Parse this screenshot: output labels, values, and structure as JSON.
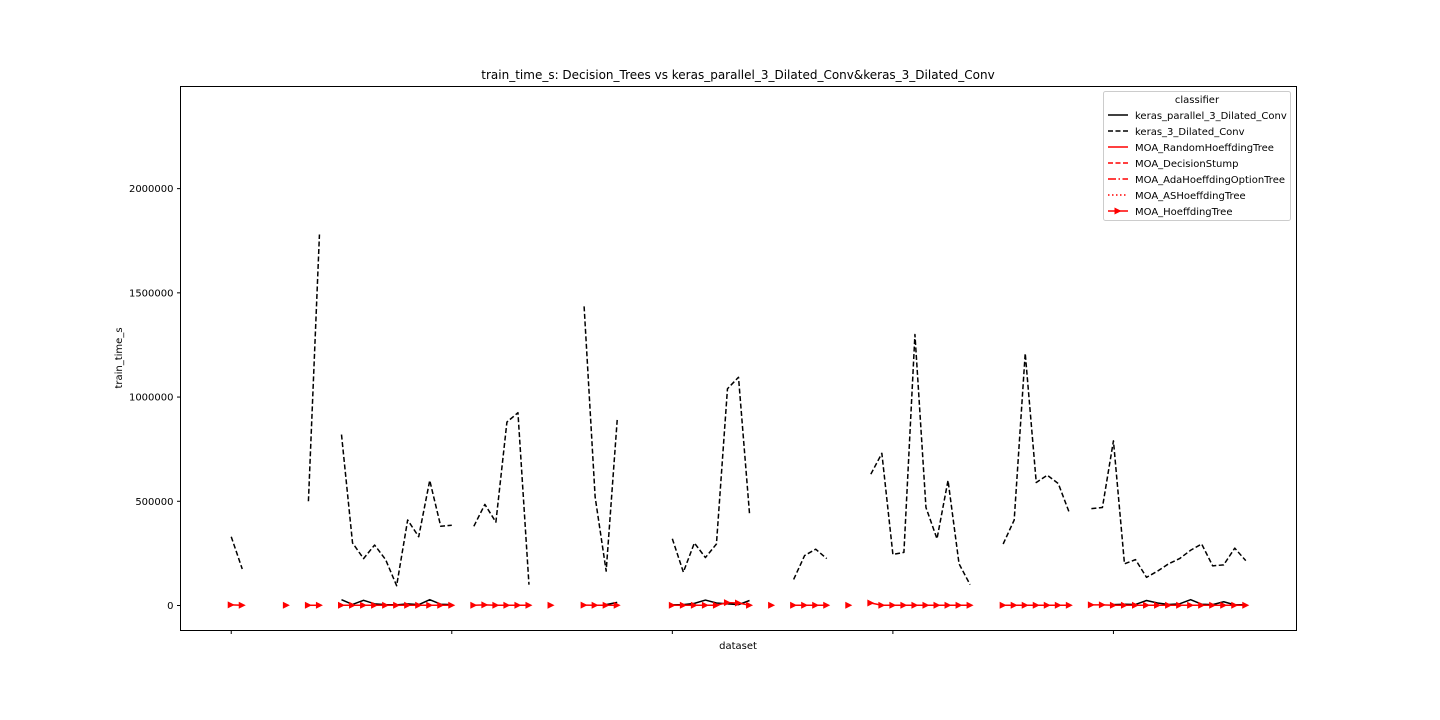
{
  "chart_data": {
    "type": "line",
    "title": "train_time_s: Decision_Trees vs keras_parallel_3_Dilated_Conv&keras_3_Dilated_Conv",
    "xlabel": "dataset",
    "ylabel": "train_time_s",
    "n_datasets": 94,
    "xlim": [
      -4.6,
      96.6
    ],
    "ylim": [
      -120000,
      2490000
    ],
    "yticks": [
      0,
      500000,
      1000000,
      1500000,
      2000000
    ],
    "ytick_labels": [
      "0",
      "500000",
      "1000000",
      "1500000",
      "2000000"
    ],
    "xticks": [
      0,
      20,
      40,
      60,
      80
    ],
    "grid": false,
    "legend": {
      "title": "classifier",
      "placement": "upper right",
      "entries": [
        {
          "label": "keras_parallel_3_Dilated_Conv",
          "color": "#000000",
          "style": "solid"
        },
        {
          "label": "keras_3_Dilated_Conv",
          "color": "#000000",
          "style": "dashed"
        },
        {
          "label": "MOA_RandomHoeffdingTree",
          "color": "#ff0000",
          "style": "solid"
        },
        {
          "label": "MOA_DecisionStump",
          "color": "#ff0000",
          "style": "dashed"
        },
        {
          "label": "MOA_AdaHoeffdingOptionTree",
          "color": "#ff0000",
          "style": "dashdot"
        },
        {
          "label": "MOA_ASHoeffdingTree",
          "color": "#ff0000",
          "style": "dotted"
        },
        {
          "label": "MOA_HoeffdingTree",
          "color": "#ff0000",
          "style": "solid-marker"
        }
      ]
    },
    "series": [
      {
        "name": "keras_3_Dilated_Conv",
        "segments": [
          [
            [
              0,
              330000
            ],
            [
              1,
              175000
            ]
          ],
          [
            [
              7,
              500000
            ],
            [
              8,
              1780000
            ]
          ],
          [
            [
              10,
              820000
            ],
            [
              11,
              300000
            ],
            [
              12,
              225000
            ],
            [
              13,
              290000
            ],
            [
              14,
              220000
            ],
            [
              15,
              95000
            ],
            [
              16,
              410000
            ],
            [
              17,
              330000
            ],
            [
              18,
              600000
            ],
            [
              19,
              380000
            ],
            [
              20,
              385000
            ]
          ],
          [
            [
              22,
              380000
            ],
            [
              23,
              485000
            ],
            [
              24,
              400000
            ],
            [
              25,
              880000
            ],
            [
              26,
              925000
            ],
            [
              27,
              100000
            ]
          ],
          [
            [
              32,
              1435000
            ],
            [
              33,
              520000
            ],
            [
              34,
              165000
            ],
            [
              35,
              890000
            ]
          ],
          [
            [
              40,
              320000
            ],
            [
              41,
              160000
            ],
            [
              42,
              300000
            ],
            [
              43,
              230000
            ],
            [
              44,
              295000
            ],
            [
              45,
              1040000
            ],
            [
              46,
              1095000
            ],
            [
              47,
              440000
            ]
          ],
          [
            [
              51,
              125000
            ],
            [
              52,
              240000
            ],
            [
              53,
              270000
            ],
            [
              54,
              225000
            ]
          ],
          [
            [
              58,
              630000
            ],
            [
              59,
              730000
            ],
            [
              60,
              245000
            ],
            [
              61,
              255000
            ],
            [
              62,
              1300000
            ],
            [
              63,
              470000
            ],
            [
              64,
              320000
            ],
            [
              65,
              600000
            ],
            [
              66,
              200000
            ],
            [
              67,
              100000
            ]
          ],
          [
            [
              70,
              295000
            ],
            [
              71,
              410000
            ],
            [
              72,
              1210000
            ],
            [
              73,
              590000
            ],
            [
              74,
              625000
            ],
            [
              75,
              585000
            ],
            [
              76,
              445000
            ]
          ],
          [
            [
              78,
              465000
            ],
            [
              79,
              470000
            ],
            [
              80,
              790000
            ],
            [
              81,
              200000
            ],
            [
              82,
              220000
            ],
            [
              83,
              135000
            ],
            [
              84,
              165000
            ],
            [
              85,
              200000
            ],
            [
              86,
              225000
            ],
            [
              87,
              265000
            ],
            [
              88,
              295000
            ],
            [
              89,
              190000
            ],
            [
              90,
              195000
            ],
            [
              91,
              275000
            ],
            [
              92,
              215000
            ]
          ]
        ]
      },
      {
        "name": "keras_parallel_3_Dilated_Conv",
        "segments": [
          [
            [
              10,
              28000
            ],
            [
              11,
              5000
            ],
            [
              12,
              25000
            ],
            [
              13,
              8000
            ],
            [
              14,
              4000
            ],
            [
              15,
              3000
            ],
            [
              16,
              8000
            ],
            [
              17,
              4000
            ],
            [
              18,
              28000
            ],
            [
              19,
              6000
            ],
            [
              20,
              4000
            ]
          ],
          [
            [
              34,
              4000
            ],
            [
              35,
              15000
            ]
          ],
          [
            [
              40,
              3000
            ],
            [
              41,
              4000
            ],
            [
              42,
              10000
            ],
            [
              43,
              26000
            ],
            [
              44,
              12000
            ],
            [
              45,
              8000
            ],
            [
              46,
              4000
            ],
            [
              47,
              24000
            ]
          ],
          [
            [
              80,
              4000
            ],
            [
              81,
              6000
            ],
            [
              82,
              5000
            ],
            [
              83,
              24000
            ],
            [
              84,
              12000
            ],
            [
              85,
              5000
            ],
            [
              86,
              8000
            ],
            [
              87,
              28000
            ],
            [
              88,
              6000
            ],
            [
              89,
              4000
            ],
            [
              90,
              18000
            ],
            [
              91,
              3000
            ],
            [
              92,
              4000
            ]
          ]
        ]
      },
      {
        "name": "MOA_HoeffdingTree",
        "segments": [
          [
            [
              0,
              3000
            ],
            [
              1,
              1000
            ]
          ],
          [
            [
              5,
              1000
            ]
          ],
          [
            [
              7,
              1000
            ],
            [
              8,
              1000
            ]
          ],
          [
            [
              10,
              1000
            ],
            [
              11,
              1000
            ],
            [
              12,
              1000
            ],
            [
              13,
              1000
            ],
            [
              14,
              1000
            ],
            [
              15,
              1000
            ],
            [
              16,
              1000
            ],
            [
              17,
              1000
            ],
            [
              18,
              1000
            ],
            [
              19,
              1000
            ],
            [
              20,
              1000
            ]
          ],
          [
            [
              22,
              1000
            ],
            [
              23,
              3000
            ],
            [
              24,
              1000
            ],
            [
              25,
              1000
            ],
            [
              26,
              1000
            ],
            [
              27,
              1000
            ]
          ],
          [
            [
              29,
              1000
            ]
          ],
          [
            [
              32,
              2000
            ],
            [
              33,
              1000
            ],
            [
              34,
              1000
            ],
            [
              35,
              1000
            ]
          ],
          [
            [
              40,
              1000
            ],
            [
              41,
              1000
            ],
            [
              42,
              1000
            ],
            [
              43,
              1000
            ],
            [
              44,
              1000
            ],
            [
              45,
              14000
            ],
            [
              46,
              12000
            ],
            [
              47,
              1000
            ]
          ],
          [
            [
              49,
              1000
            ]
          ],
          [
            [
              51,
              1000
            ],
            [
              52,
              1000
            ],
            [
              53,
              1000
            ],
            [
              54,
              1000
            ]
          ],
          [
            [
              56,
              1000
            ]
          ],
          [
            [
              58,
              12000
            ],
            [
              59,
              1000
            ],
            [
              60,
              1000
            ],
            [
              61,
              1000
            ],
            [
              62,
              1000
            ],
            [
              63,
              1000
            ],
            [
              64,
              1000
            ],
            [
              65,
              1000
            ],
            [
              66,
              1000
            ],
            [
              67,
              1000
            ]
          ],
          [
            [
              70,
              1000
            ],
            [
              71,
              1000
            ],
            [
              72,
              1000
            ],
            [
              73,
              1000
            ],
            [
              74,
              1000
            ],
            [
              75,
              1000
            ],
            [
              76,
              1000
            ]
          ],
          [
            [
              78,
              3000
            ],
            [
              79,
              3000
            ],
            [
              80,
              1000
            ],
            [
              81,
              1000
            ],
            [
              82,
              1000
            ],
            [
              83,
              1000
            ],
            [
              84,
              1000
            ],
            [
              85,
              1000
            ],
            [
              86,
              1000
            ],
            [
              87,
              1000
            ],
            [
              88,
              1000
            ],
            [
              89,
              1000
            ],
            [
              90,
              1000
            ],
            [
              91,
              1000
            ],
            [
              92,
              1000
            ]
          ]
        ]
      }
    ]
  }
}
